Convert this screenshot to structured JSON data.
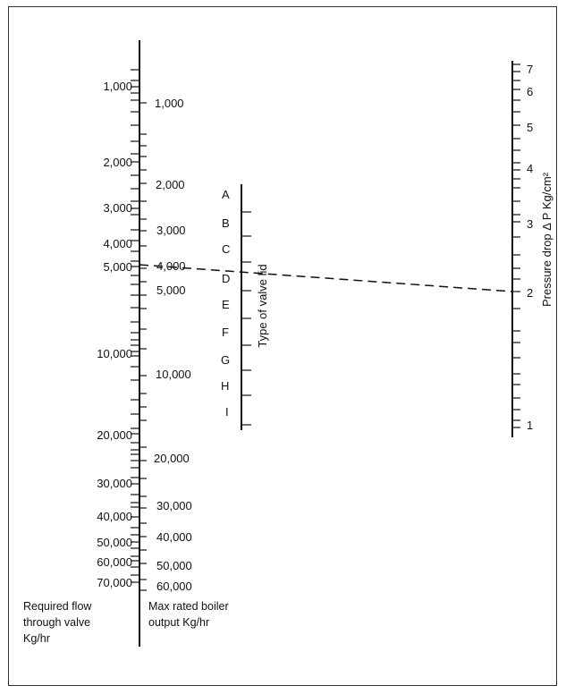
{
  "scale_flow": {
    "caption": [
      "Required flow",
      "through valve",
      "Kg/hr"
    ],
    "labels": [
      "1,000",
      "2,000",
      "3,000",
      "4,000",
      "5,000",
      "10,000",
      "20,000",
      "30,000",
      "40,000",
      "50,000",
      "60,000",
      "70,000"
    ]
  },
  "scale_output": {
    "caption": [
      "Max rated boiler",
      "output Kg/hr"
    ],
    "labels": [
      "1,000",
      "2,000",
      "3,000",
      "4,000",
      "5,000",
      "10,000",
      "20,000",
      "30,000",
      "40,000",
      "50,000",
      "60,000"
    ]
  },
  "scale_valve": {
    "caption": "Type of valve lid",
    "labels": [
      "A",
      "B",
      "C",
      "D",
      "E",
      "F",
      "G",
      "H",
      "I"
    ]
  },
  "scale_pressure": {
    "caption": "Pressure drop Δ P  Kg/cm²",
    "labels": [
      "7",
      "6",
      "5",
      "4",
      "3",
      "2",
      "1"
    ]
  },
  "example": {
    "flow": 4800,
    "valve_lid": "D",
    "pressure_drop": 2.05
  }
}
